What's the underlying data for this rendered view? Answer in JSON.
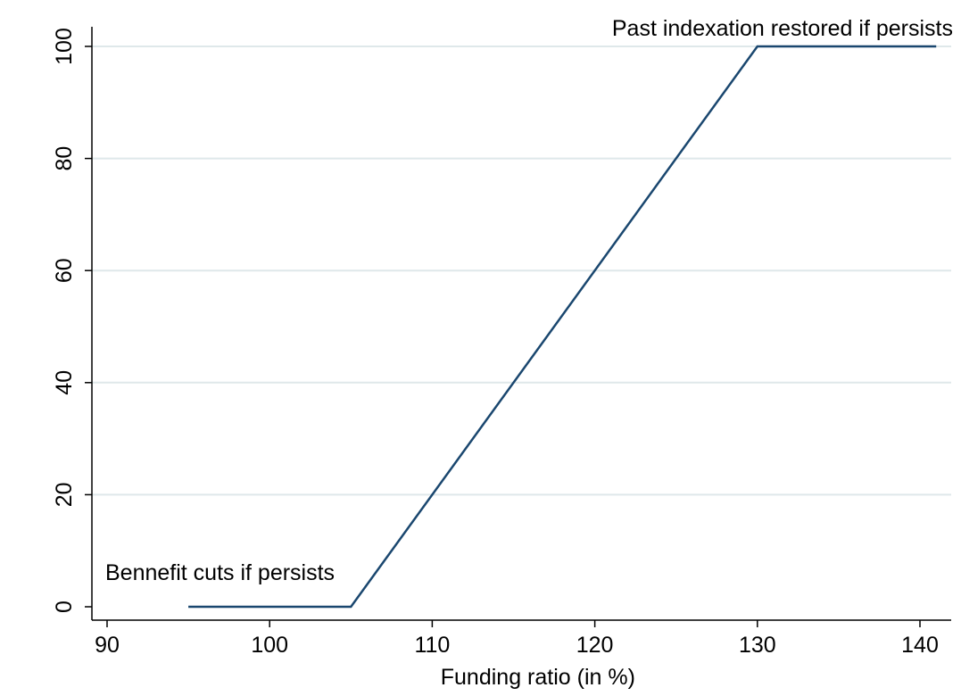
{
  "chart_data": {
    "type": "line",
    "title": "",
    "xlabel": "Funding ratio (in %)",
    "ylabel": "",
    "xlim": [
      90,
      142
    ],
    "ylim": [
      0,
      100
    ],
    "xticks": [
      90,
      100,
      110,
      120,
      130,
      140
    ],
    "yticks": [
      0,
      20,
      40,
      60,
      80,
      100
    ],
    "grid": "horizontal",
    "legend": "none",
    "series": [
      {
        "x": [
          95,
          105,
          130,
          141
        ],
        "y": [
          0,
          0,
          100,
          100
        ],
        "color": "#1a476f"
      }
    ],
    "annotations": [
      {
        "text": "Bennefit cuts if persists",
        "x": 90,
        "y": 0
      },
      {
        "text": "Past indexation restored if persists",
        "x": 141,
        "y": 100
      }
    ],
    "colors": {
      "line": "#1a476f",
      "grid": "#dfe8ea",
      "axis": "#000000",
      "background": "#ffffff"
    }
  }
}
